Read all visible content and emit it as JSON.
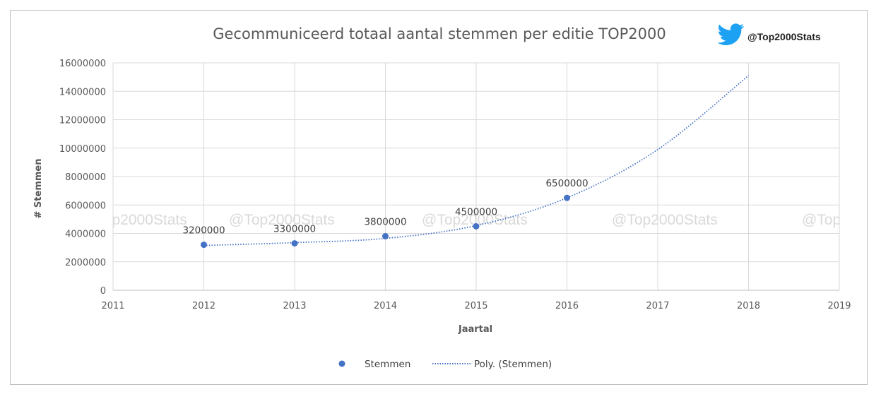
{
  "twitter_handle": "@Top2000Stats",
  "watermark_text": "@Top2000Stats",
  "chart_data": {
    "type": "scatter",
    "title": "Gecommuniceerd totaal aantal stemmen per editie TOP2000",
    "xlabel": "Jaartal",
    "ylabel": "# Stemmen",
    "xlim": [
      2011,
      2019
    ],
    "ylim": [
      0,
      16000000
    ],
    "x_ticks": [
      2011,
      2012,
      2013,
      2014,
      2015,
      2016,
      2017,
      2018,
      2019
    ],
    "y_ticks": [
      0,
      2000000,
      4000000,
      6000000,
      8000000,
      10000000,
      12000000,
      14000000,
      16000000
    ],
    "grid": true,
    "legend_position": "bottom",
    "series": [
      {
        "name": "Stemmen",
        "kind": "markers",
        "color": "#4472c4",
        "x": [
          2012,
          2013,
          2014,
          2015,
          2016
        ],
        "y": [
          3200000,
          3300000,
          3800000,
          4500000,
          6500000
        ],
        "data_labels": [
          "3200000",
          "3300000",
          "3800000",
          "4500000",
          "6500000"
        ]
      },
      {
        "name": "Poly. (Stemmen)",
        "kind": "trendline",
        "style": "dotted",
        "color": "#4472c4",
        "x": [
          2012,
          2013,
          2014,
          2015,
          2016,
          2017,
          2018
        ],
        "y": [
          3150000,
          3350000,
          3650000,
          4550000,
          6500000,
          9900000,
          15100000
        ]
      }
    ]
  }
}
